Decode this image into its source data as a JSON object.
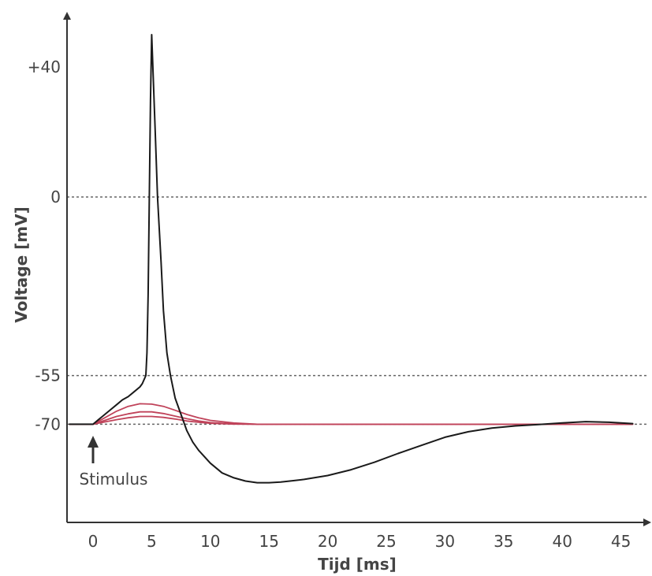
{
  "chart_data": {
    "type": "line",
    "title": "",
    "xlabel": "Tijd [ms]",
    "ylabel": "Voltage [mV]",
    "xlim": [
      -2,
      47
    ],
    "ylim": [
      -95,
      52
    ],
    "x_ticks": [
      0,
      5,
      10,
      15,
      20,
      25,
      30,
      35,
      40,
      45
    ],
    "x_tick_labels": [
      "0",
      "5",
      "10",
      "15",
      "20",
      "25",
      "30",
      "35",
      "40",
      "45"
    ],
    "y_ticks": [
      40,
      0,
      -55,
      -70
    ],
    "y_tick_labels": [
      "+40",
      "0",
      "-55",
      "-70"
    ],
    "reference_lines": [
      0,
      -55,
      -70
    ],
    "grid": false,
    "legend": "none",
    "annotations": [
      {
        "text": "Stimulus",
        "x": 0,
        "y": -70
      }
    ],
    "colors": {
      "action_potential": "#1a1a1a",
      "subthreshold": "#c0435a",
      "axis": "#333333",
      "reference_line": "#666666"
    },
    "series": [
      {
        "color": "#1a1a1a",
        "x": [
          -2,
          0,
          0.5,
          1,
          1.5,
          2,
          2.5,
          3,
          3.5,
          4,
          4.2,
          4.5,
          4.6,
          4.7,
          4.8,
          4.9,
          5.0,
          5.1,
          5.3,
          5.5,
          5.8,
          6.0,
          6.3,
          6.6,
          7,
          7.5,
          8,
          8.5,
          9,
          10,
          11,
          12,
          13,
          14,
          15,
          16,
          17,
          18,
          20,
          22,
          24,
          26,
          28,
          30,
          32,
          34,
          36,
          38,
          40,
          42,
          44,
          46
        ],
        "y": [
          -70,
          -70,
          -68.5,
          -67,
          -65.5,
          -64,
          -62.5,
          -61.5,
          -60,
          -58.5,
          -57.5,
          -55,
          -48,
          -30,
          0,
          30,
          50,
          40,
          20,
          0,
          -20,
          -35,
          -48,
          -55,
          -62,
          -67,
          -72,
          -75.5,
          -78,
          -82,
          -85,
          -86.5,
          -87.5,
          -88,
          -88,
          -87.8,
          -87.4,
          -87,
          -85.8,
          -84,
          -81.7,
          -79,
          -76.5,
          -74,
          -72.3,
          -71.2,
          -70.5,
          -70.1,
          -69.6,
          -69.2,
          -69.4,
          -69.8
        ]
      },
      {
        "color": "#c0435a",
        "x": [
          -2,
          0,
          1,
          2,
          3,
          4,
          5,
          6,
          7,
          8,
          9,
          10,
          12,
          14,
          16,
          20,
          25,
          30,
          35,
          40,
          46
        ],
        "y": [
          -70,
          -70,
          -68,
          -66,
          -64.5,
          -63.7,
          -63.8,
          -64.5,
          -65.7,
          -67,
          -68,
          -68.8,
          -69.6,
          -70,
          -70,
          -70,
          -70,
          -70,
          -70,
          -70,
          -70
        ]
      },
      {
        "color": "#c0435a",
        "x": [
          -2,
          0,
          1,
          2,
          3,
          4,
          5,
          6,
          7,
          8,
          9,
          10,
          12,
          14,
          16,
          20,
          25,
          30,
          35,
          40,
          46
        ],
        "y": [
          -70,
          -70,
          -68.8,
          -67.6,
          -66.8,
          -66.2,
          -66.2,
          -66.7,
          -67.5,
          -68.3,
          -69,
          -69.5,
          -69.9,
          -70,
          -70,
          -70,
          -70,
          -70,
          -70,
          -70,
          -70
        ]
      },
      {
        "color": "#c0435a",
        "x": [
          -2,
          0,
          1,
          2,
          3,
          4,
          5,
          6,
          7,
          8,
          9,
          10,
          12,
          14,
          16,
          20,
          25,
          30,
          35,
          40,
          46
        ],
        "y": [
          -70,
          -70,
          -69.3,
          -68.6,
          -68.0,
          -67.6,
          -67.6,
          -67.9,
          -68.4,
          -69,
          -69.4,
          -69.7,
          -69.95,
          -70,
          -70,
          -70,
          -70,
          -70,
          -70,
          -70,
          -70
        ]
      }
    ]
  }
}
